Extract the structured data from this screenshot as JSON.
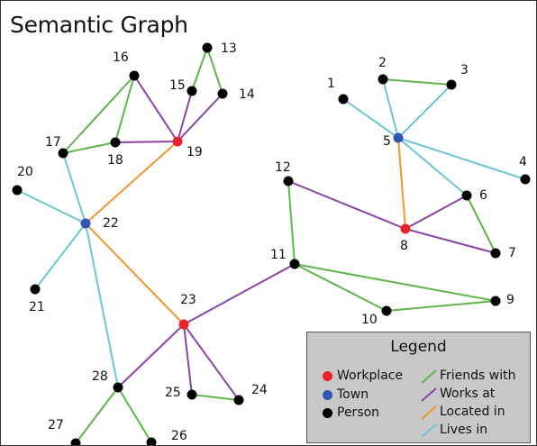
{
  "title": "Semantic Graph",
  "colors": {
    "workplace": "#e8232a",
    "town": "#2f56b0",
    "person": "#000000",
    "friends_with": "#5db54c",
    "works_at": "#8a44a6",
    "located_in": "#f0962e",
    "lives_in": "#6cc6d6"
  },
  "nodes": [
    {
      "id": "1",
      "type": "person"
    },
    {
      "id": "2",
      "type": "person"
    },
    {
      "id": "3",
      "type": "person"
    },
    {
      "id": "4",
      "type": "person"
    },
    {
      "id": "5",
      "type": "town"
    },
    {
      "id": "6",
      "type": "person"
    },
    {
      "id": "7",
      "type": "person"
    },
    {
      "id": "8",
      "type": "workplace"
    },
    {
      "id": "9",
      "type": "person"
    },
    {
      "id": "10",
      "type": "person"
    },
    {
      "id": "11",
      "type": "person"
    },
    {
      "id": "12",
      "type": "person"
    },
    {
      "id": "13",
      "type": "person"
    },
    {
      "id": "14",
      "type": "person"
    },
    {
      "id": "15",
      "type": "person"
    },
    {
      "id": "16",
      "type": "person"
    },
    {
      "id": "17",
      "type": "person"
    },
    {
      "id": "18",
      "type": "person"
    },
    {
      "id": "19",
      "type": "workplace"
    },
    {
      "id": "20",
      "type": "person"
    },
    {
      "id": "21",
      "type": "person"
    },
    {
      "id": "22",
      "type": "town"
    },
    {
      "id": "23",
      "type": "workplace"
    },
    {
      "id": "24",
      "type": "person"
    },
    {
      "id": "25",
      "type": "person"
    },
    {
      "id": "26",
      "type": "person"
    },
    {
      "id": "27",
      "type": "person"
    },
    {
      "id": "28",
      "type": "person"
    }
  ],
  "edges": [
    {
      "from": "1",
      "to": "5",
      "rel": "lives_in"
    },
    {
      "from": "2",
      "to": "5",
      "rel": "lives_in"
    },
    {
      "from": "3",
      "to": "5",
      "rel": "lives_in"
    },
    {
      "from": "4",
      "to": "5",
      "rel": "lives_in"
    },
    {
      "from": "6",
      "to": "5",
      "rel": "lives_in"
    },
    {
      "from": "2",
      "to": "3",
      "rel": "friends_with"
    },
    {
      "from": "8",
      "to": "5",
      "rel": "located_in"
    },
    {
      "from": "6",
      "to": "8",
      "rel": "works_at"
    },
    {
      "from": "7",
      "to": "8",
      "rel": "works_at"
    },
    {
      "from": "12",
      "to": "8",
      "rel": "works_at"
    },
    {
      "from": "6",
      "to": "7",
      "rel": "friends_with"
    },
    {
      "from": "12",
      "to": "11",
      "rel": "friends_with"
    },
    {
      "from": "11",
      "to": "9",
      "rel": "friends_with"
    },
    {
      "from": "11",
      "to": "10",
      "rel": "friends_with"
    },
    {
      "from": "10",
      "to": "9",
      "rel": "friends_with"
    },
    {
      "from": "11",
      "to": "23",
      "rel": "works_at"
    },
    {
      "from": "13",
      "to": "15",
      "rel": "friends_with"
    },
    {
      "from": "13",
      "to": "14",
      "rel": "friends_with"
    },
    {
      "from": "15",
      "to": "19",
      "rel": "works_at"
    },
    {
      "from": "14",
      "to": "19",
      "rel": "works_at"
    },
    {
      "from": "16",
      "to": "19",
      "rel": "works_at"
    },
    {
      "from": "18",
      "to": "19",
      "rel": "works_at"
    },
    {
      "from": "16",
      "to": "17",
      "rel": "friends_with"
    },
    {
      "from": "16",
      "to": "18",
      "rel": "friends_with"
    },
    {
      "from": "17",
      "to": "18",
      "rel": "friends_with"
    },
    {
      "from": "19",
      "to": "22",
      "rel": "located_in"
    },
    {
      "from": "17",
      "to": "22",
      "rel": "lives_in"
    },
    {
      "from": "20",
      "to": "22",
      "rel": "lives_in"
    },
    {
      "from": "21",
      "to": "22",
      "rel": "lives_in"
    },
    {
      "from": "28",
      "to": "22",
      "rel": "lives_in"
    },
    {
      "from": "23",
      "to": "22",
      "rel": "located_in"
    },
    {
      "from": "28",
      "to": "23",
      "rel": "works_at"
    },
    {
      "from": "25",
      "to": "23",
      "rel": "works_at"
    },
    {
      "from": "24",
      "to": "23",
      "rel": "works_at"
    },
    {
      "from": "25",
      "to": "24",
      "rel": "friends_with"
    },
    {
      "from": "28",
      "to": "27",
      "rel": "friends_with"
    },
    {
      "from": "28",
      "to": "26",
      "rel": "friends_with"
    }
  ],
  "legend": {
    "title": "Legend",
    "node_types": [
      {
        "key": "workplace",
        "label": "Workplace"
      },
      {
        "key": "town",
        "label": "Town"
      },
      {
        "key": "person",
        "label": "Person"
      }
    ],
    "edge_types": [
      {
        "key": "friends_with",
        "label": "Friends with"
      },
      {
        "key": "works_at",
        "label": "Works at"
      },
      {
        "key": "located_in",
        "label": "Located in"
      },
      {
        "key": "lives_in",
        "label": "Lives in"
      }
    ]
  }
}
